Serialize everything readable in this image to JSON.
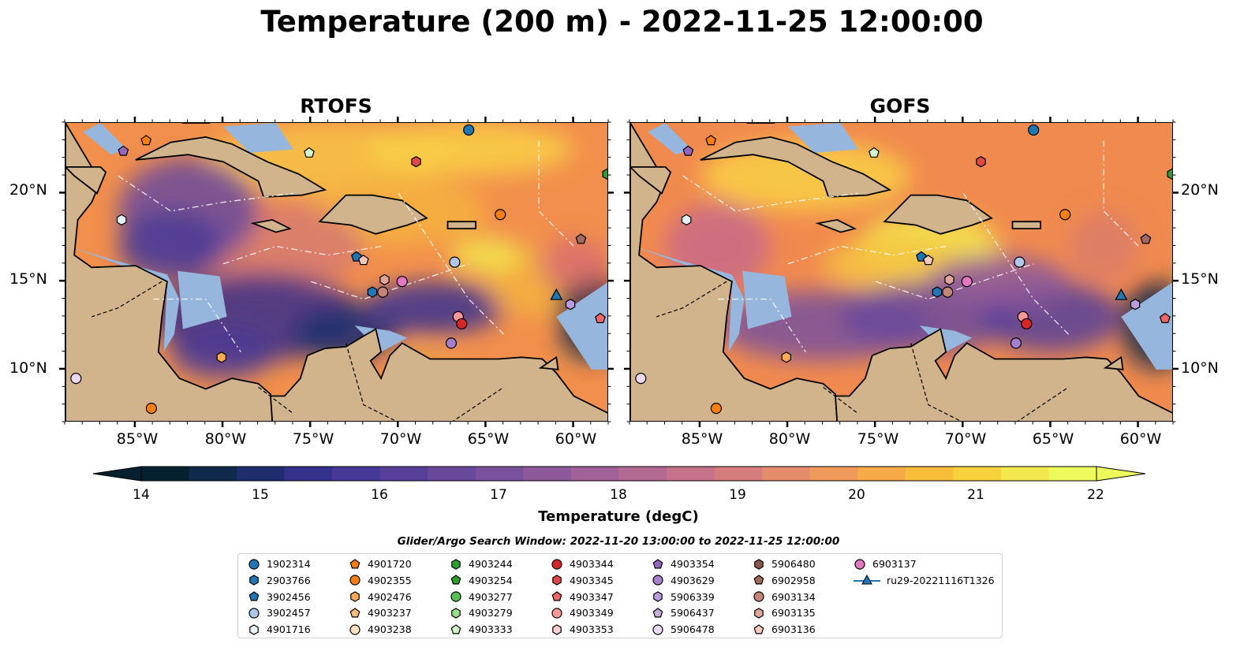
{
  "title": "Temperature (200 m) - 2022-11-25 12:00:00",
  "panels": [
    {
      "title": "RTOFS"
    },
    {
      "title": "GOFS"
    }
  ],
  "lon_ticks": [
    "85°W",
    "80°W",
    "75°W",
    "70°W",
    "65°W",
    "60°W"
  ],
  "lat_ticks": [
    "20°N",
    "15°N",
    "10°N"
  ],
  "map_extent": {
    "lon": [
      -89,
      -58
    ],
    "lat": [
      7,
      24
    ]
  },
  "colorbar": {
    "label": "Temperature (degC)",
    "ticks": [
      "14",
      "15",
      "16",
      "17",
      "18",
      "19",
      "20",
      "21",
      "22"
    ],
    "range": [
      14,
      22
    ],
    "colors": [
      "#05202e",
      "#0f2a4a",
      "#1f2d6e",
      "#33318a",
      "#453896",
      "#56409a",
      "#68499c",
      "#7a519c",
      "#8d599b",
      "#a06298",
      "#b36a92",
      "#c6728a",
      "#d57d7d",
      "#e48c6c",
      "#ef9a5a",
      "#f6ab48",
      "#f9bd3c",
      "#f8d23c",
      "#f3e84e",
      "#eefa5c"
    ]
  },
  "search_window": "Glider/Argo Search Window: 2022-11-20 13:00:00 to 2022-11-25 12:00:00",
  "legend": [
    {
      "label": "1902314",
      "marker": "circle",
      "color": "#1f77b4"
    },
    {
      "label": "2903766",
      "marker": "hexagon",
      "color": "#1f77b4"
    },
    {
      "label": "3902456",
      "marker": "pentagon",
      "color": "#1f77b4"
    },
    {
      "label": "3902457",
      "marker": "circle",
      "color": "#aec7e8"
    },
    {
      "label": "4901716",
      "marker": "hexagon",
      "color": "#e6f2ff"
    },
    {
      "label": "4901720",
      "marker": "pentagon",
      "color": "#ff7f0e"
    },
    {
      "label": "4902355",
      "marker": "circle",
      "color": "#ff7f0e"
    },
    {
      "label": "4902476",
      "marker": "hexagon",
      "color": "#ffaa55"
    },
    {
      "label": "4903237",
      "marker": "pentagon",
      "color": "#ffbb78"
    },
    {
      "label": "4903238",
      "marker": "circle",
      "color": "#ffe0c0"
    },
    {
      "label": "4903244",
      "marker": "hexagon",
      "color": "#2ca02c"
    },
    {
      "label": "4903254",
      "marker": "pentagon",
      "color": "#2ca02c"
    },
    {
      "label": "4903277",
      "marker": "circle",
      "color": "#55c055"
    },
    {
      "label": "4903279",
      "marker": "hexagon",
      "color": "#98df8a"
    },
    {
      "label": "4903333",
      "marker": "pentagon",
      "color": "#d4f5cc"
    },
    {
      "label": "4903344",
      "marker": "circle",
      "color": "#d62728"
    },
    {
      "label": "4903345",
      "marker": "hexagon",
      "color": "#e04848"
    },
    {
      "label": "4903347",
      "marker": "pentagon",
      "color": "#ee6666"
    },
    {
      "label": "4903349",
      "marker": "circle",
      "color": "#ff9896"
    },
    {
      "label": "4903353",
      "marker": "hexagon",
      "color": "#ffd0cf"
    },
    {
      "label": "4903354",
      "marker": "pentagon",
      "color": "#9467bd"
    },
    {
      "label": "4903629",
      "marker": "circle",
      "color": "#a57fcc"
    },
    {
      "label": "5906339",
      "marker": "hexagon",
      "color": "#b99be0"
    },
    {
      "label": "5906437",
      "marker": "pentagon",
      "color": "#c5b0d5"
    },
    {
      "label": "5906478",
      "marker": "circle",
      "color": "#ead8f5"
    },
    {
      "label": "5906480",
      "marker": "hexagon",
      "color": "#8c564b"
    },
    {
      "label": "6902958",
      "marker": "pentagon",
      "color": "#a06a5e"
    },
    {
      "label": "6903134",
      "marker": "circle",
      "color": "#c4847a"
    },
    {
      "label": "6903135",
      "marker": "hexagon",
      "color": "#e0a89c"
    },
    {
      "label": "6903136",
      "marker": "pentagon",
      "color": "#f7c9bc"
    },
    {
      "label": "6903137",
      "marker": "circle",
      "color": "#e377c2"
    },
    {
      "label": "ru29-20221116T1326",
      "marker": "triangle-line",
      "color": "#1f77b4"
    }
  ],
  "stations": [
    {
      "id": "1902314",
      "lon": -66.0,
      "lat": 23.6
    },
    {
      "id": "4901720",
      "lon": -84.4,
      "lat": 23.0
    },
    {
      "id": "4903354",
      "lon": -85.7,
      "lat": 22.4
    },
    {
      "id": "4903333",
      "lon": -75.1,
      "lat": 22.3
    },
    {
      "id": "4903345",
      "lon": -69.0,
      "lat": 21.8
    },
    {
      "id": "4903244",
      "lon": -58.1,
      "lat": 21.1
    },
    {
      "id": "4901716",
      "lon": -85.8,
      "lat": 18.5
    },
    {
      "id": "4902355",
      "lon": -64.2,
      "lat": 18.8
    },
    {
      "id": "6902958",
      "lon": -59.6,
      "lat": 17.4
    },
    {
      "id": "3902456",
      "lon": -72.4,
      "lat": 16.4
    },
    {
      "id": "6903136",
      "lon": -72.0,
      "lat": 16.2
    },
    {
      "id": "3902457",
      "lon": -66.8,
      "lat": 16.1
    },
    {
      "id": "6903135",
      "lon": -70.8,
      "lat": 15.1
    },
    {
      "id": "6903137",
      "lon": -69.8,
      "lat": 15.0
    },
    {
      "id": "2903766",
      "lon": -71.5,
      "lat": 14.4
    },
    {
      "id": "6903134",
      "lon": -70.9,
      "lat": 14.4
    },
    {
      "id": "ru29-20221116T1326",
      "lon": -61.0,
      "lat": 14.2
    },
    {
      "id": "5906339",
      "lon": -60.2,
      "lat": 13.7
    },
    {
      "id": "4903347",
      "lon": -58.5,
      "lat": 12.9
    },
    {
      "id": "4903349",
      "lon": -66.6,
      "lat": 13.0
    },
    {
      "id": "4903344",
      "lon": -66.4,
      "lat": 12.6
    },
    {
      "id": "4903629",
      "lon": -67.0,
      "lat": 11.5
    },
    {
      "id": "4902476",
      "lon": -80.1,
      "lat": 10.7
    },
    {
      "id": "5906478",
      "lon": -88.4,
      "lat": 9.5
    },
    {
      "id": "4902355",
      "lon": -84.1,
      "lat": 7.8
    }
  ]
}
